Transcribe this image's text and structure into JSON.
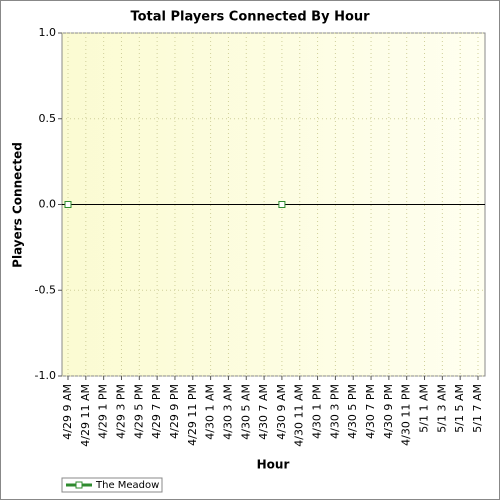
{
  "chart_data": {
    "type": "line",
    "title": "Total Players Connected By Hour",
    "x_label": "Hour",
    "y_label": "Players Connected",
    "categories": [
      "4/29 9 AM",
      "4/29 11 AM",
      "4/29 1 PM",
      "4/29 3 PM",
      "4/29 5 PM",
      "4/29 7 PM",
      "4/29 9 PM",
      "4/29 11 PM",
      "4/30 1 AM",
      "4/30 3 AM",
      "4/30 5 AM",
      "4/30 7 AM",
      "4/30 9 AM",
      "4/30 11 AM",
      "4/30 1 PM",
      "4/30 3 PM",
      "4/30 5 PM",
      "4/30 7 PM",
      "4/30 9 PM",
      "4/30 11 PM",
      "5/1 1 AM",
      "5/1 3 AM",
      "5/1 5 AM",
      "5/1 7 AM"
    ],
    "series": [
      {
        "name": "The Meadow",
        "color": "#2e8b2e",
        "values": [
          0,
          null,
          null,
          null,
          null,
          null,
          null,
          null,
          null,
          null,
          null,
          null,
          0,
          null,
          null,
          null,
          null,
          null,
          null,
          null,
          null,
          null,
          null,
          null
        ]
      }
    ],
    "ylim": [
      -1,
      1
    ],
    "yticks": [
      {
        "value": -1,
        "label": "-1.0"
      },
      {
        "value": -0.5,
        "label": "-0.5"
      },
      {
        "value": 0,
        "label": "0.0"
      },
      {
        "value": 0.5,
        "label": "0.5"
      },
      {
        "value": 1,
        "label": "1.0"
      }
    ],
    "grid": true
  }
}
